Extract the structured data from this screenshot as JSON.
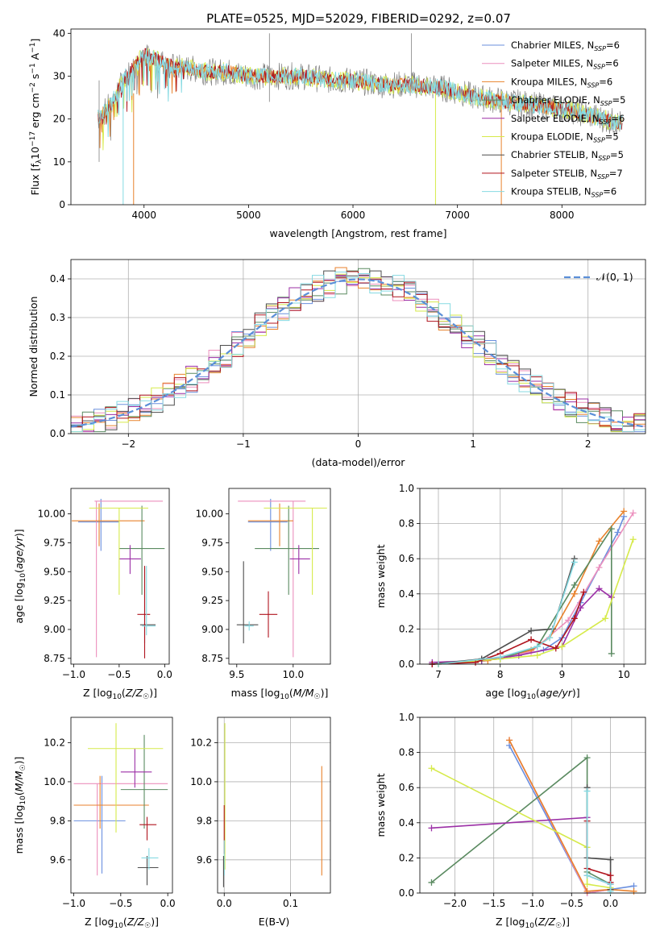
{
  "figure": {
    "title": "PLATE=0525, MJD=52029, FIBERID=0292, z=0.07"
  },
  "colors": {
    "Chabrier MILES": "#6a8fde",
    "Salpeter MILES": "#ec8fbd",
    "Kroupa MILES": "#e8822c",
    "Chabrier ELODIE": "#5a8a60",
    "Salpeter ELODIE": "#9b2fa6",
    "Kroupa ELODIE": "#d6ea4a",
    "Chabrier STELIB": "#4d4d4d",
    "Salpeter STELIB": "#b0141e",
    "Kroupa STELIB": "#86dae2",
    "data": "#808080",
    "normal": "#5b8fd8"
  },
  "chart_data": [
    {
      "id": "spectrum",
      "type": "line",
      "title": "PLATE=0525, MJD=52029, FIBERID=0292, z=0.07",
      "xlabel": "wavelength [Angstrom, rest frame]",
      "ylabel_parts": [
        "Flux [f",
        "λ",
        "10",
        "−17",
        " erg cm",
        "−2",
        " s",
        "−1",
        " A",
        "−1",
        "]"
      ],
      "xlim": [
        3300,
        8800
      ],
      "ylim": [
        0,
        41
      ],
      "xticks": [
        "4000",
        "5000",
        "6000",
        "7000",
        "8000"
      ],
      "yticks": [
        "0",
        "10",
        "20",
        "30",
        "40"
      ],
      "continuum_x": [
        3550,
        3600,
        3700,
        3800,
        3900,
        4000,
        4100,
        4200,
        4300,
        4400,
        4600,
        4800,
        5000,
        5200,
        5500,
        5800,
        6000,
        6300,
        6600,
        6900,
        7200,
        7500,
        7800,
        8100,
        8400,
        8700
      ],
      "continuum_y": [
        20,
        21,
        24,
        29,
        32,
        35,
        34,
        33,
        32,
        32,
        31,
        31,
        30,
        30,
        30,
        29,
        29,
        28,
        28,
        27,
        25,
        24,
        23,
        22,
        20,
        18
      ],
      "legend": [
        {
          "label": "Chabrier MILES, N",
          "sub": "SSP",
          "value": "=6"
        },
        {
          "label": "Salpeter MILES, N",
          "sub": "SSP",
          "value": "=6"
        },
        {
          "label": "Kroupa MILES, N",
          "sub": "SSP",
          "value": "=6"
        },
        {
          "label": "Chabrier ELODIE, N",
          "sub": "SSP",
          "value": "=5"
        },
        {
          "label": "Salpeter ELODIE, N",
          "sub": "SSP",
          "value": "=6"
        },
        {
          "label": "Kroupa ELODIE, N",
          "sub": "SSP",
          "value": "=5"
        },
        {
          "label": "Chabrier STELIB, N",
          "sub": "SSP",
          "value": "=5"
        },
        {
          "label": "Salpeter STELIB, N",
          "sub": "SSP",
          "value": "=7"
        },
        {
          "label": "Kroupa STELIB, N",
          "sub": "SSP",
          "value": "=6"
        }
      ],
      "legend_placement": "top-right",
      "grid": false
    },
    {
      "id": "residuals",
      "type": "step-histogram",
      "xlabel": "(data-model)/error",
      "ylabel": "Normed distribution",
      "xlim": [
        -2.5,
        2.5
      ],
      "ylim": [
        0,
        0.45
      ],
      "xticks": [
        "−2",
        "−1",
        "0",
        "1",
        "2"
      ],
      "yticks": [
        "0.0",
        "0.1",
        "0.2",
        "0.3",
        "0.4"
      ],
      "legend": [
        "𝒩(0, 1)"
      ],
      "legend_placement": "top-right",
      "grid": true
    },
    {
      "id": "age-vs-Z",
      "type": "errorbar",
      "xlabel": "Z [log10(Z/Z☉)]",
      "ylabel": "age  [log10(age/yr)]",
      "xlim": [
        -1.03,
        0.05
      ],
      "ylim": [
        8.7,
        10.22
      ],
      "xticks": [
        "−1.0",
        "−0.5",
        "0.0"
      ],
      "yticks": [
        "8.75",
        "9.00",
        "9.25",
        "9.50",
        "9.75",
        "10.00"
      ],
      "grid": false,
      "points": [
        {
          "model": "Chabrier MILES",
          "x": -0.7,
          "y": 9.93,
          "xerr": [
            0.25,
            0.2
          ],
          "yerr": [
            0.25,
            0.2
          ]
        },
        {
          "model": "Salpeter MILES",
          "x": -0.75,
          "y": 10.11,
          "xerr": [
            0.02,
            0.73
          ],
          "yerr": [
            1.35,
            0.0
          ]
        },
        {
          "model": "Kroupa MILES",
          "x": -0.72,
          "y": 9.94,
          "xerr": [
            0.3,
            0.5
          ],
          "yerr": [
            0.22,
            0.15
          ]
        },
        {
          "model": "Chabrier ELODIE",
          "x": -0.25,
          "y": 9.7,
          "xerr": [
            0.25,
            0.25
          ],
          "yerr": [
            0.4,
            0.37
          ]
        },
        {
          "model": "Salpeter ELODIE",
          "x": -0.38,
          "y": 9.61,
          "xerr": [
            0.12,
            0.12
          ],
          "yerr": [
            0.13,
            0.12
          ]
        },
        {
          "model": "Kroupa ELODIE",
          "x": -0.5,
          "y": 10.05,
          "xerr": [
            0.33,
            0.32
          ],
          "yerr": [
            0.75,
            0.0
          ]
        },
        {
          "model": "Chabrier STELIB",
          "x": -0.22,
          "y": 9.04,
          "xerr": [
            0.05,
            0.12
          ],
          "yerr": [
            0.16,
            0.5
          ]
        },
        {
          "model": "Salpeter STELIB",
          "x": -0.22,
          "y": 9.13,
          "xerr": [
            0.08,
            0.06
          ],
          "yerr": [
            0.38,
            0.42
          ]
        },
        {
          "model": "Kroupa STELIB",
          "x": -0.2,
          "y": 9.03,
          "xerr": [
            0.05,
            0.1
          ],
          "yerr": [
            0.08,
            0.52
          ]
        }
      ]
    },
    {
      "id": "age-vs-mass",
      "type": "errorbar",
      "xlabel": "mass [log10(M/M☉)]",
      "xlim": [
        9.43,
        10.33
      ],
      "ylim": [
        8.7,
        10.22
      ],
      "xticks": [
        "9.5",
        "10.0"
      ],
      "yticks": [
        "8.75",
        "9.00",
        "9.25",
        "9.50",
        "9.75",
        "10.00"
      ],
      "grid": false,
      "points": [
        {
          "model": "Chabrier MILES",
          "x": 9.8,
          "y": 9.93,
          "xerr": [
            0.2,
            0.15
          ],
          "yerr": [
            0.25,
            0.2
          ]
        },
        {
          "model": "Salpeter MILES",
          "x": 10.0,
          "y": 10.11,
          "xerr": [
            0.49,
            0.11
          ],
          "yerr": [
            1.35,
            0.0
          ]
        },
        {
          "model": "Kroupa MILES",
          "x": 9.88,
          "y": 9.94,
          "xerr": [
            0.28,
            0.12
          ],
          "yerr": [
            0.22,
            0.15
          ]
        },
        {
          "model": "Chabrier ELODIE",
          "x": 9.96,
          "y": 9.7,
          "xerr": [
            0.3,
            0.27
          ],
          "yerr": [
            0.4,
            0.37
          ]
        },
        {
          "model": "Salpeter ELODIE",
          "x": 10.05,
          "y": 9.61,
          "xerr": [
            0.08,
            0.1
          ],
          "yerr": [
            0.13,
            0.12
          ]
        },
        {
          "model": "Kroupa ELODIE",
          "x": 10.17,
          "y": 10.05,
          "xerr": [
            0.43,
            0.13
          ],
          "yerr": [
            0.75,
            0.0
          ]
        },
        {
          "model": "Chabrier STELIB",
          "x": 9.56,
          "y": 9.04,
          "xerr": [
            0.06,
            0.13
          ],
          "yerr": [
            0.16,
            0.55
          ]
        },
        {
          "model": "Salpeter STELIB",
          "x": 9.78,
          "y": 9.13,
          "xerr": [
            0.08,
            0.08
          ],
          "yerr": [
            0.2,
            0.2
          ]
        },
        {
          "model": "Kroupa STELIB",
          "x": 9.61,
          "y": 9.03,
          "xerr": [
            0.04,
            0.04
          ],
          "yerr": [
            0.04,
            0.04
          ]
        }
      ]
    },
    {
      "id": "mass-weight-vs-age",
      "type": "line",
      "xlabel": "age  [log10(age/yr)]",
      "ylabel": "mass weight",
      "xlim": [
        6.7,
        10.35
      ],
      "ylim": [
        0,
        1
      ],
      "xticks": [
        "7",
        "8",
        "9",
        "10"
      ],
      "yticks": [
        "0.0",
        "0.2",
        "0.4",
        "0.6",
        "0.8",
        "1.0"
      ],
      "grid": true,
      "series": [
        {
          "model": "Chabrier MILES",
          "x": [
            6.9,
            7.7,
            8.3,
            8.7,
            9.0,
            9.3,
            9.9,
            10.0
          ],
          "y": [
            0.0,
            0.02,
            0.05,
            0.08,
            0.15,
            0.35,
            0.75,
            0.84
          ]
        },
        {
          "model": "Salpeter MILES",
          "x": [
            7.0,
            7.8,
            8.5,
            9.1,
            9.6,
            10.15
          ],
          "y": [
            0.0,
            0.03,
            0.07,
            0.25,
            0.55,
            0.86
          ]
        },
        {
          "model": "Kroupa MILES",
          "x": [
            7.0,
            7.8,
            8.5,
            8.8,
            9.2,
            9.6,
            10.0
          ],
          "y": [
            0.0,
            0.02,
            0.08,
            0.15,
            0.4,
            0.7,
            0.87
          ]
        },
        {
          "model": "Chabrier ELODIE",
          "x": [
            6.9,
            8.0,
            8.6,
            9.2,
            9.8,
            9.8
          ],
          "y": [
            0.0,
            0.03,
            0.1,
            0.45,
            0.77,
            0.06
          ]
        },
        {
          "model": "Salpeter ELODIE",
          "x": [
            6.9,
            7.7,
            8.3,
            9.0,
            9.3,
            9.6,
            9.8
          ],
          "y": [
            0.01,
            0.02,
            0.05,
            0.1,
            0.32,
            0.43,
            0.38
          ]
        },
        {
          "model": "Kroupa ELODIE",
          "x": [
            7.0,
            8.0,
            8.6,
            9.0,
            9.7,
            10.15
          ],
          "y": [
            0.0,
            0.03,
            0.05,
            0.1,
            0.26,
            0.71
          ]
        },
        {
          "model": "Chabrier STELIB",
          "x": [
            6.9,
            7.7,
            8.5,
            8.85,
            9.2
          ],
          "y": [
            0.0,
            0.03,
            0.19,
            0.2,
            0.6
          ]
        },
        {
          "model": "Salpeter STELIB",
          "x": [
            6.9,
            7.6,
            8.0,
            8.5,
            8.9,
            9.2,
            9.35
          ],
          "y": [
            0.0,
            0.01,
            0.06,
            0.14,
            0.09,
            0.26,
            0.41
          ]
        },
        {
          "model": "Kroupa STELIB",
          "x": [
            7.0,
            8.0,
            8.6,
            8.8,
            9.2
          ],
          "y": [
            0.0,
            0.04,
            0.1,
            0.15,
            0.58
          ]
        }
      ]
    },
    {
      "id": "mass-vs-Z",
      "type": "errorbar",
      "xlabel": "Z [log10(Z/Z☉)]",
      "ylabel": "mass [log10(M/M☉)]",
      "xlim": [
        -1.03,
        0.05
      ],
      "ylim": [
        9.43,
        10.33
      ],
      "xticks": [
        "−1.0",
        "−0.5",
        "0.0"
      ],
      "yticks": [
        "9.6",
        "9.8",
        "10.0",
        "10.2"
      ],
      "grid": false,
      "points": [
        {
          "model": "Chabrier MILES",
          "x": -0.7,
          "y": 9.8,
          "xerr": [
            0.3,
            0.25
          ],
          "yerr": [
            0.27,
            0.23
          ]
        },
        {
          "model": "Salpeter MILES",
          "x": -0.75,
          "y": 9.99,
          "xerr": [
            0.25,
            0.75
          ],
          "yerr": [
            0.47,
            0.0
          ]
        },
        {
          "model": "Kroupa MILES",
          "x": -0.72,
          "y": 9.88,
          "xerr": [
            0.28,
            0.52
          ],
          "yerr": [
            0.12,
            0.15
          ]
        },
        {
          "model": "Chabrier ELODIE",
          "x": -0.25,
          "y": 9.96,
          "xerr": [
            0.25,
            0.25
          ],
          "yerr": [
            0.2,
            0.28
          ]
        },
        {
          "model": "Salpeter ELODIE",
          "x": -0.35,
          "y": 10.05,
          "xerr": [
            0.15,
            0.18
          ],
          "yerr": [
            0.08,
            0.12
          ]
        },
        {
          "model": "Kroupa ELODIE",
          "x": -0.55,
          "y": 10.17,
          "xerr": [
            0.3,
            0.5
          ],
          "yerr": [
            0.43,
            0.13
          ]
        },
        {
          "model": "Chabrier STELIB",
          "x": -0.22,
          "y": 9.56,
          "xerr": [
            0.1,
            0.12
          ],
          "yerr": [
            0.09,
            0.06
          ]
        },
        {
          "model": "Salpeter STELIB",
          "x": -0.22,
          "y": 9.78,
          "xerr": [
            0.08,
            0.1
          ],
          "yerr": [
            0.08,
            0.04
          ]
        },
        {
          "model": "Kroupa STELIB",
          "x": -0.2,
          "y": 9.61,
          "xerr": [
            0.08,
            0.1
          ],
          "yerr": [
            0.06,
            0.05
          ]
        }
      ]
    },
    {
      "id": "mass-vs-ebv",
      "type": "errorbar",
      "xlabel": "E(B-V)",
      "xlim": [
        -0.01,
        0.16
      ],
      "ylim": [
        9.43,
        10.33
      ],
      "xticks": [
        "0.0",
        "0.1"
      ],
      "yticks": [
        "9.6",
        "9.8",
        "10.0",
        "10.2"
      ],
      "grid": true,
      "points": [
        {
          "model": "Kroupa MILES",
          "x": 0.147,
          "y": 9.8,
          "xerr": [
            0,
            0
          ],
          "yerr": [
            0.28,
            0.28
          ]
        },
        {
          "model": "Kroupa ELODIE",
          "x": 0.001,
          "y": 10.0,
          "xerr": [
            0,
            0
          ],
          "yerr": [
            0.45,
            0.3
          ]
        },
        {
          "model": "Salpeter STELIB",
          "x": 0.0,
          "y": 9.78,
          "xerr": [
            0,
            0
          ],
          "yerr": [
            0.15,
            0.1
          ]
        },
        {
          "model": "Kroupa STELIB",
          "x": 0.0,
          "y": 9.62,
          "xerr": [
            0,
            0
          ],
          "yerr": [
            0.1,
            0.08
          ]
        },
        {
          "model": "Chabrier STELIB",
          "x": -0.001,
          "y": 9.56,
          "xerr": [
            0,
            0
          ],
          "yerr": [
            0.1,
            0.06
          ]
        }
      ]
    },
    {
      "id": "mass-weight-vs-Z",
      "type": "line",
      "xlabel": "Z [log10(Z/Z☉)]",
      "ylabel": "mass weight",
      "xlim": [
        -2.45,
        0.45
      ],
      "ylim": [
        0,
        1
      ],
      "xticks": [
        "−2.0",
        "−1.5",
        "−1.0",
        "−0.5",
        "0.0"
      ],
      "yticks": [
        "0.0",
        "0.2",
        "0.4",
        "0.6",
        "0.8",
        "1.0"
      ],
      "grid": true,
      "series": [
        {
          "model": "Chabrier MILES",
          "x": [
            -1.3,
            -0.3,
            0.0,
            0.3
          ],
          "y": [
            0.84,
            0.0,
            0.02,
            0.04
          ]
        },
        {
          "model": "Salpeter MILES",
          "x": [
            -1.3,
            -0.3,
            0.0
          ],
          "y": [
            0.87,
            0.0,
            0.02
          ]
        },
        {
          "model": "Kroupa MILES",
          "x": [
            -1.3,
            -0.3,
            0.0,
            0.3
          ],
          "y": [
            0.87,
            0.01,
            0.02,
            0.01
          ]
        },
        {
          "model": "Chabrier ELODIE",
          "x": [
            -2.3,
            -0.3,
            -0.3,
            0.0
          ],
          "y": [
            0.06,
            0.77,
            0.12,
            0.05
          ]
        },
        {
          "model": "Salpeter ELODIE",
          "x": [
            -2.3,
            -0.3,
            -0.3,
            0.0
          ],
          "y": [
            0.37,
            0.43,
            0.1,
            0.05
          ]
        },
        {
          "model": "Kroupa ELODIE",
          "x": [
            -2.3,
            -0.3,
            -0.3,
            0.0
          ],
          "y": [
            0.71,
            0.26,
            0.05,
            0.03
          ]
        },
        {
          "model": "Chabrier STELIB",
          "x": [
            -0.3,
            -0.3,
            0.0,
            0.0
          ],
          "y": [
            0.6,
            0.2,
            0.19,
            0.02
          ]
        },
        {
          "model": "Salpeter STELIB",
          "x": [
            -0.3,
            -0.3,
            0.0,
            0.0
          ],
          "y": [
            0.41,
            0.14,
            0.1,
            0.06
          ]
        },
        {
          "model": "Kroupa STELIB",
          "x": [
            -0.3,
            -0.3,
            0.0,
            0.0
          ],
          "y": [
            0.58,
            0.1,
            0.05,
            0.01
          ]
        }
      ]
    }
  ]
}
